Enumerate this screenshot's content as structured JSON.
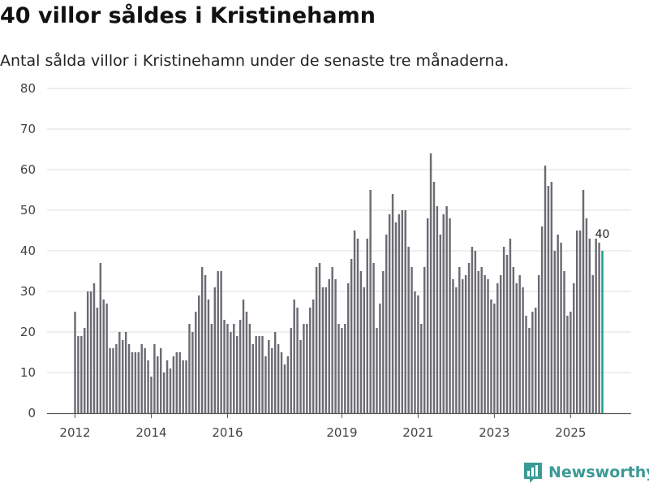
{
  "header": {
    "title": "40 villor såldes i Kristinehamn",
    "subtitle": "Antal sålda villor i Kristinehamn under de senaste tre månaderna."
  },
  "brand": {
    "name": "Newsworthy",
    "color": "#3a9a96",
    "icon": "bar-chart-logo-icon"
  },
  "chart_data": {
    "type": "bar",
    "title": "40 villor såldes i Kristinehamn",
    "subtitle": "Antal sålda villor i Kristinehamn under de senaste tre månaderna.",
    "xlabel": "",
    "ylabel": "",
    "ylim": [
      0,
      80
    ],
    "yticks": [
      0,
      10,
      20,
      30,
      40,
      50,
      60,
      70,
      80
    ],
    "xticks": [
      {
        "label": "2012",
        "index": 0
      },
      {
        "label": "2014",
        "index": 24
      },
      {
        "label": "2016",
        "index": 48
      },
      {
        "label": "2019",
        "index": 84
      },
      {
        "label": "2021",
        "index": 108
      },
      {
        "label": "2023",
        "index": 132
      },
      {
        "label": "2025",
        "index": 156
      }
    ],
    "grid": true,
    "bar_color": "#6b6b73",
    "highlight_color": "#159d8f",
    "last_value_label": "40",
    "series": [
      {
        "name": "Sålda villor",
        "values": [
          25,
          19,
          19,
          21,
          30,
          30,
          32,
          26,
          37,
          28,
          27,
          16,
          16,
          17,
          20,
          18,
          20,
          17,
          15,
          15,
          15,
          17,
          16,
          13,
          9,
          17,
          14,
          16,
          10,
          13,
          11,
          14,
          15,
          15,
          13,
          13,
          22,
          20,
          25,
          29,
          36,
          34,
          28,
          22,
          31,
          35,
          35,
          23,
          22,
          20,
          22,
          19,
          23,
          28,
          25,
          22,
          17,
          19,
          19,
          19,
          14,
          18,
          16,
          20,
          17,
          15,
          12,
          14,
          21,
          28,
          26,
          18,
          22,
          22,
          26,
          28,
          36,
          37,
          31,
          31,
          33,
          36,
          33,
          22,
          21,
          22,
          32,
          38,
          45,
          43,
          35,
          31,
          43,
          55,
          37,
          21,
          27,
          35,
          44,
          49,
          54,
          47,
          49,
          50,
          50,
          41,
          36,
          30,
          29,
          22,
          36,
          48,
          64,
          57,
          51,
          44,
          49,
          51,
          48,
          33,
          31,
          36,
          33,
          34,
          37,
          41,
          40,
          35,
          36,
          34,
          33,
          28,
          27,
          32,
          34,
          41,
          39,
          43,
          36,
          32,
          34,
          31,
          24,
          21,
          25,
          26,
          34,
          46,
          61,
          56,
          57,
          40,
          44,
          42,
          35,
          24,
          25,
          32,
          45,
          45,
          55,
          48,
          43,
          34,
          43,
          42,
          40
        ]
      }
    ]
  }
}
